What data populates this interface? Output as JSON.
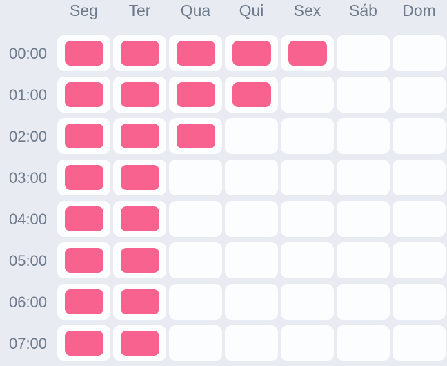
{
  "schedule": {
    "day_headers": [
      "Seg",
      "Ter",
      "Qua",
      "Qui",
      "Sex",
      "Sáb",
      "Dom"
    ],
    "time_labels": [
      "00:00",
      "01:00",
      "02:00",
      "03:00",
      "04:00",
      "05:00",
      "06:00",
      "07:00"
    ],
    "filled": [
      [
        1,
        1,
        1,
        1,
        1,
        0,
        0
      ],
      [
        1,
        1,
        1,
        1,
        0,
        0,
        0
      ],
      [
        1,
        1,
        1,
        0,
        0,
        0,
        0
      ],
      [
        1,
        1,
        0,
        0,
        0,
        0,
        0
      ],
      [
        1,
        1,
        0,
        0,
        0,
        0,
        0
      ],
      [
        1,
        1,
        0,
        0,
        0,
        0,
        0
      ],
      [
        1,
        1,
        0,
        0,
        0,
        0,
        0
      ],
      [
        1,
        1,
        0,
        0,
        0,
        0,
        0
      ]
    ]
  },
  "colors": {
    "background": "#e9ebf2",
    "cell_empty": "#fcfdfe",
    "cell_active": "#f7628e",
    "label_text": "#6e7a8b"
  }
}
